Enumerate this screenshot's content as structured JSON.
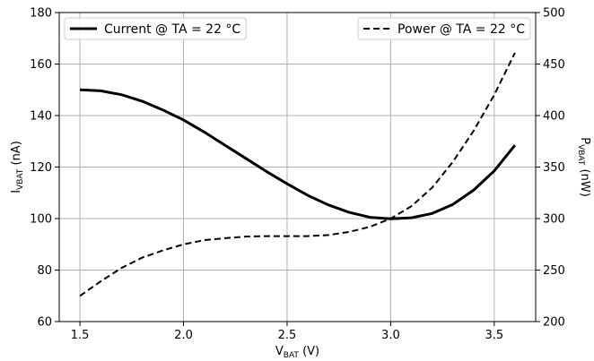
{
  "chart_data": {
    "type": "line",
    "xlabel": {
      "main": "V",
      "sub": "BAT",
      "unit": " (V)"
    },
    "ylabel_left": {
      "main": "I",
      "sub": "VBAT",
      "unit": " (nA)"
    },
    "ylabel_right": {
      "main": "P",
      "sub": "VBAT",
      "unit": " (nW)"
    },
    "xlim": [
      1.4,
      3.7
    ],
    "ylim_left": [
      60,
      180
    ],
    "ylim_right": [
      200,
      500
    ],
    "x_ticks": [
      1.5,
      2.0,
      2.5,
      3.0,
      3.5
    ],
    "x_tick_labels": [
      "1.5",
      "2.0",
      "2.5",
      "3.0",
      "3.5"
    ],
    "y_left_ticks": [
      60,
      80,
      100,
      120,
      140,
      160,
      180
    ],
    "y_left_tick_labels": [
      "60",
      "80",
      "100",
      "120",
      "140",
      "160",
      "180"
    ],
    "y_right_ticks": [
      200,
      250,
      300,
      350,
      400,
      450,
      500
    ],
    "y_right_tick_labels": [
      "200",
      "250",
      "300",
      "350",
      "400",
      "450",
      "500"
    ],
    "grid": true,
    "series": [
      {
        "name": "Current @ TA = 22$\\degree$C",
        "legend_label": "Current @ TA = 22 °C",
        "axis": "left",
        "style": "solid",
        "color": "#000000",
        "x": [
          1.5,
          1.6,
          1.7,
          1.8,
          1.9,
          2.0,
          2.1,
          2.2,
          2.3,
          2.4,
          2.5,
          2.6,
          2.7,
          2.8,
          2.9,
          3.0,
          3.1,
          3.2,
          3.3,
          3.4,
          3.5,
          3.6
        ],
        "y": [
          150.0,
          149.6,
          148.1,
          145.6,
          142.2,
          138.3,
          133.6,
          128.5,
          123.4,
          118.3,
          113.5,
          109.0,
          105.3,
          102.4,
          100.5,
          99.9,
          100.3,
          102.0,
          105.5,
          111.0,
          118.5,
          128.5
        ]
      },
      {
        "name": "Power @ TA = 22$\\degree$C",
        "legend_label": "Power @ TA = 22 °C",
        "axis": "right",
        "style": "dashed",
        "color": "#000000",
        "x": [
          1.5,
          1.6,
          1.7,
          1.8,
          1.9,
          2.0,
          2.1,
          2.2,
          2.3,
          2.4,
          2.5,
          2.6,
          2.7,
          2.8,
          2.9,
          3.0,
          3.1,
          3.2,
          3.3,
          3.4,
          3.5,
          3.6
        ],
        "y": [
          225,
          239,
          252,
          262,
          269,
          275,
          279,
          281,
          282.5,
          283,
          283,
          283,
          284,
          287,
          292,
          300,
          312,
          330,
          355,
          385,
          420,
          461
        ]
      }
    ],
    "legend": [
      {
        "label": "Current @ TA = 22 °C",
        "position": "top-left"
      },
      {
        "label": "Power @ TA = 22 °C",
        "position": "top-right"
      }
    ]
  }
}
